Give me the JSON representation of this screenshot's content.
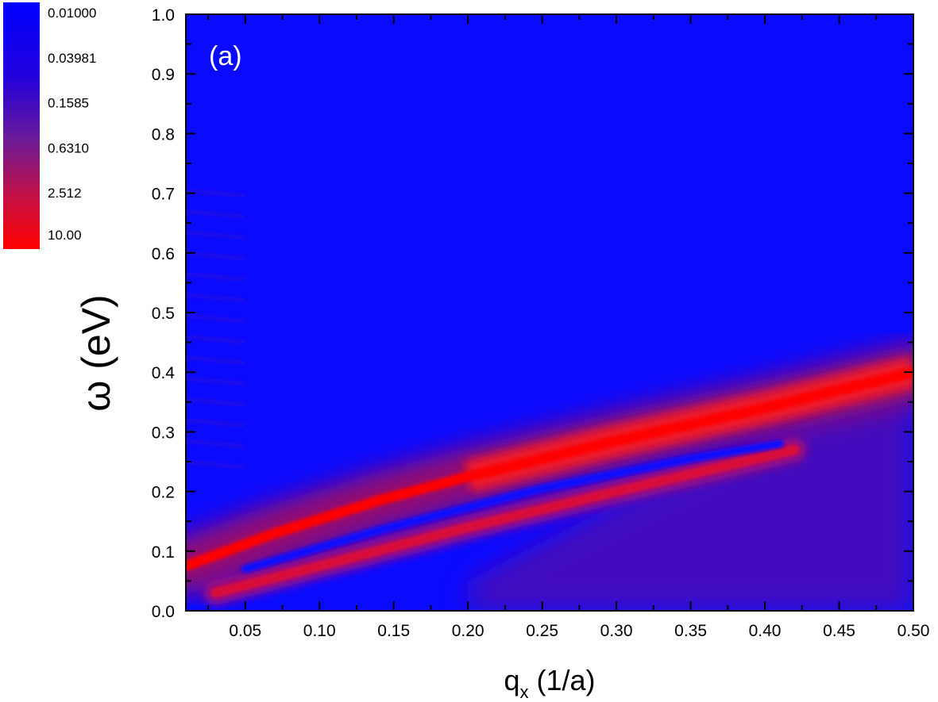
{
  "chart_data": {
    "type": "heatmap",
    "panel_label": "(a)",
    "xlabel": {
      "base": "q",
      "sub": "x",
      "unit": " (1/a)"
    },
    "ylabel": "ω (eV)",
    "xlim": [
      0.01,
      0.5
    ],
    "ylim": [
      0.0,
      1.0
    ],
    "x_ticks": [
      "0.05",
      "0.10",
      "0.15",
      "0.20",
      "0.25",
      "0.30",
      "0.35",
      "0.40",
      "0.45",
      "0.50"
    ],
    "y_ticks": [
      "0.0",
      "0.1",
      "0.2",
      "0.3",
      "0.4",
      "0.5",
      "0.6",
      "0.7",
      "0.8",
      "0.9",
      "1.0"
    ],
    "colorbar": {
      "scale": "log",
      "levels": [
        "0.01000",
        "0.03981",
        "0.1585",
        "0.6310",
        "2.512",
        "10.00"
      ],
      "color_low": "#0000ff",
      "color_high": "#ff0000"
    },
    "features": [
      {
        "name": "upper plasmon branch",
        "points": [
          [
            0.01,
            0.075
          ],
          [
            0.07,
            0.13
          ],
          [
            0.14,
            0.185
          ],
          [
            0.2,
            0.225
          ],
          [
            0.3,
            0.285
          ],
          [
            0.4,
            0.34
          ],
          [
            0.5,
            0.4
          ]
        ]
      },
      {
        "name": "lower branch",
        "points": [
          [
            0.03,
            0.03
          ],
          [
            0.1,
            0.075
          ],
          [
            0.2,
            0.14
          ],
          [
            0.3,
            0.2
          ],
          [
            0.42,
            0.27
          ]
        ]
      }
    ]
  }
}
